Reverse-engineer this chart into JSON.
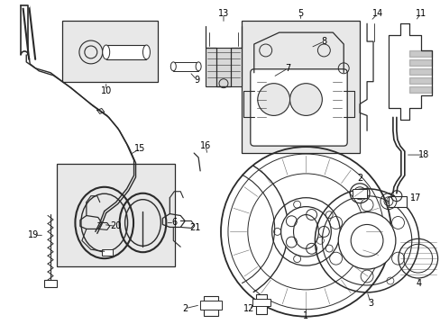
{
  "bg_color": "#ffffff",
  "line_color": "#2a2a2a",
  "box_bg": "#e8e8e8",
  "label_color": "#000000",
  "figsize": [
    4.89,
    3.6
  ],
  "dpi": 100
}
